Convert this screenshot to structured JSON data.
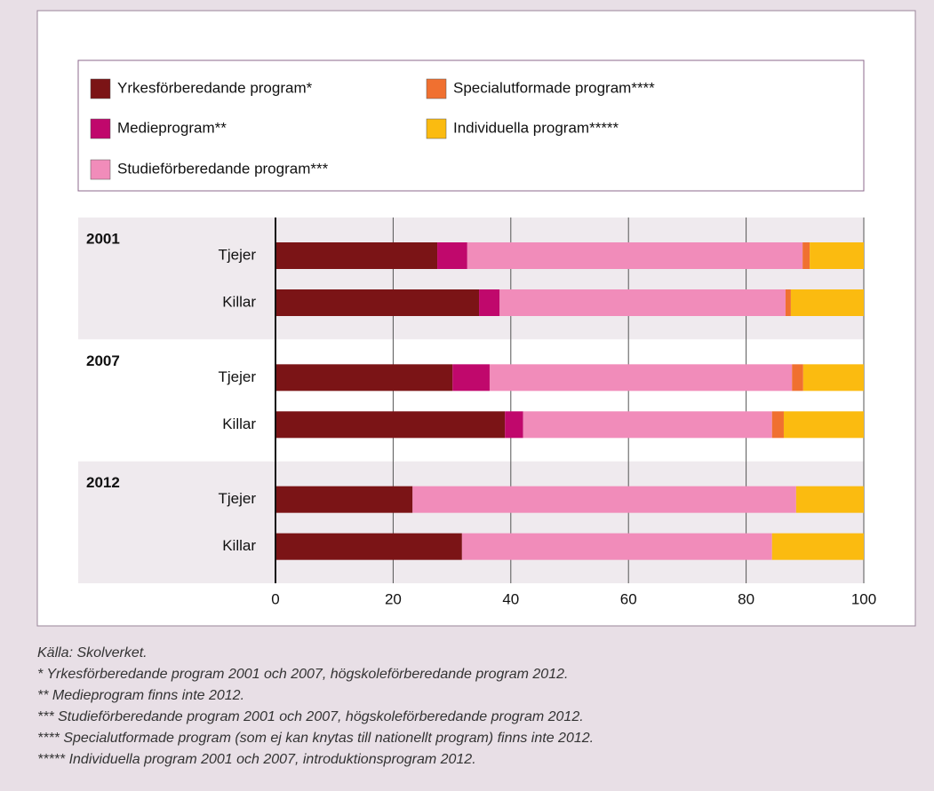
{
  "chart_data": {
    "type": "stacked_bar_horizontal",
    "groups": [
      "2001",
      "2007",
      "2012"
    ],
    "categories": [
      "Tjejer",
      "Killar",
      "Tjejer",
      "Killar",
      "Tjejer",
      "Killar"
    ],
    "series": [
      {
        "name": "Yrkesförberedande program*",
        "color": "#7b1416",
        "values": [
          27.5,
          34.6,
          30.1,
          39.0,
          23.3,
          31.7
        ]
      },
      {
        "name": "Medieprogram**",
        "color": "#c0086c",
        "values": [
          5.1,
          3.5,
          6.3,
          3.1,
          0,
          0
        ]
      },
      {
        "name": "Studieförberedande program***",
        "color": "#f18cba",
        "values": [
          57.0,
          48.6,
          51.4,
          42.3,
          65.2,
          52.7
        ]
      },
      {
        "name": "Specialutformade program****",
        "color": "#f07030",
        "values": [
          1.2,
          0.9,
          1.9,
          2.0,
          0,
          0
        ]
      },
      {
        "name": "Individuella program*****",
        "color": "#fbbb10",
        "values": [
          9.2,
          12.4,
          10.3,
          13.6,
          11.5,
          15.6
        ]
      }
    ],
    "xlim": [
      0,
      100
    ],
    "xticks": [
      0,
      20,
      40,
      60,
      80,
      100
    ],
    "grid": true,
    "source": "Källa: Skolverket.",
    "notes": [
      "* Yrkesförberedande program 2001 och 2007, högskoleförberedande program 2012.",
      "** Medieprogram finns inte 2012.",
      "*** Studieförberedande program 2001 och 2007, högskoleförberedande program 2012.",
      "**** Specialutformade program (som ej kan knytas till nationellt program) finns inte 2012.",
      "***** Individuella program 2001 och 2007, introduktionsprogram 2012."
    ]
  }
}
